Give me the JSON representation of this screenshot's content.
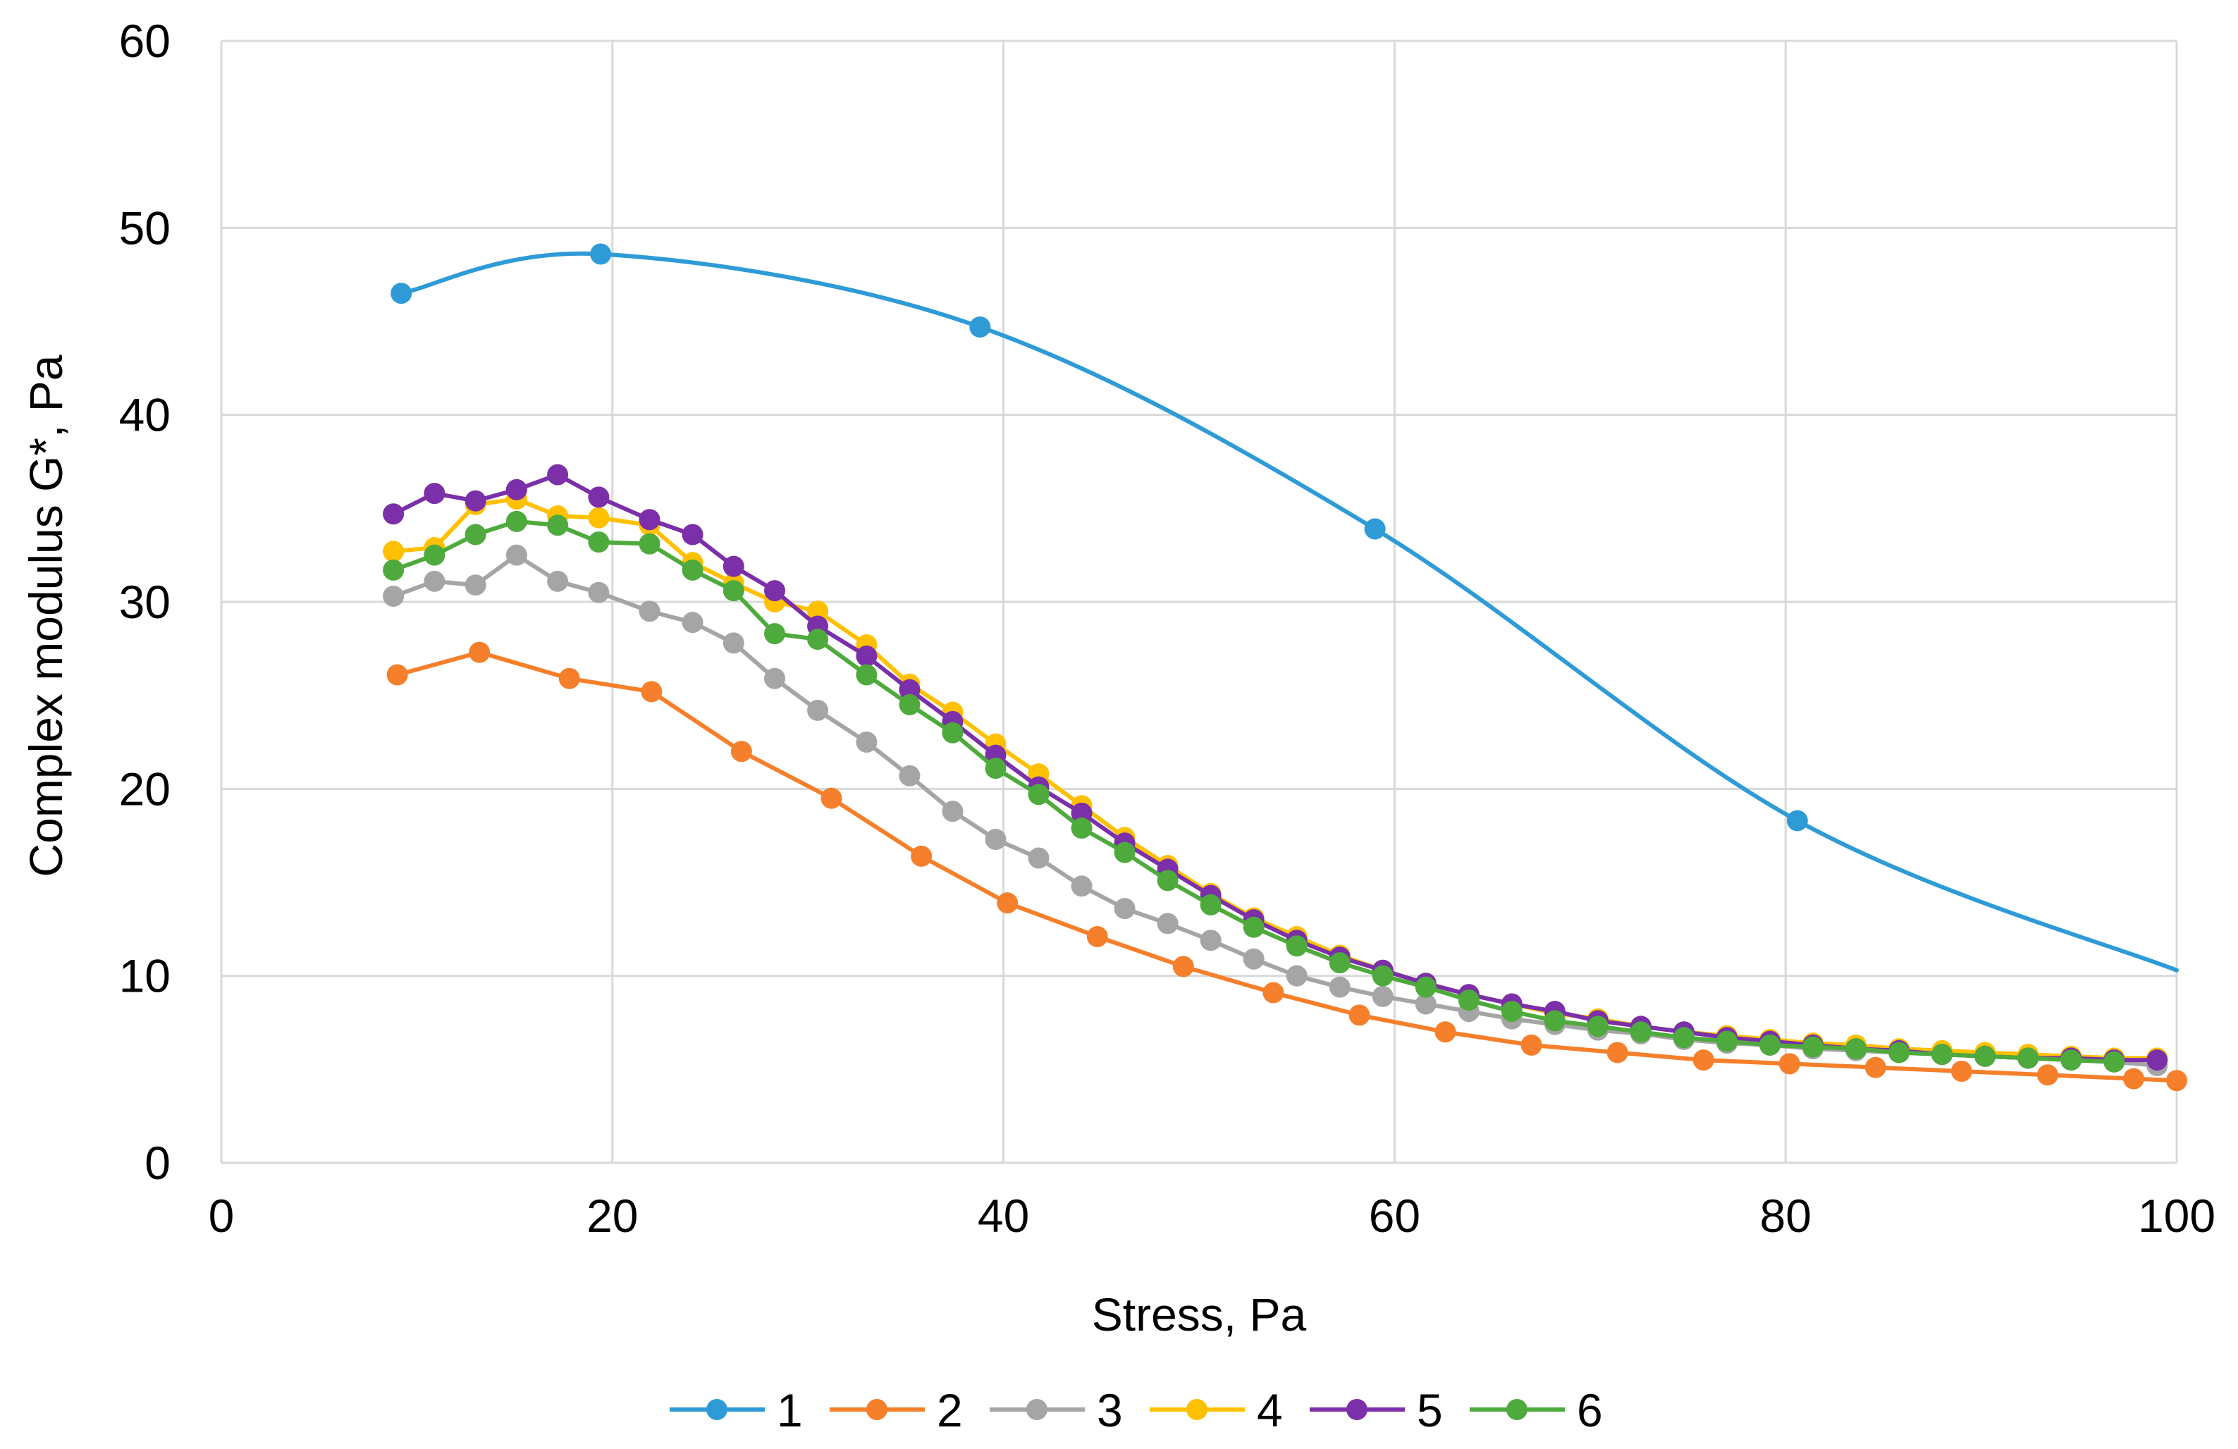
{
  "chart_data": {
    "type": "line",
    "xlabel": "Stress, Pa",
    "ylabel": "Complex modulus G*, Pa",
    "xlim": [
      0,
      100
    ],
    "ylim": [
      0,
      60
    ],
    "xticks": [
      0,
      20,
      40,
      60,
      80,
      100
    ],
    "yticks": [
      0,
      10,
      20,
      30,
      40,
      50,
      60
    ],
    "grid": true,
    "legend_position": "bottom",
    "series": [
      {
        "name": "1",
        "color": "#2E9BD6",
        "smooth": true,
        "x": [
          9.2,
          19.4,
          38.8,
          59.0,
          80.6,
          100.0
        ],
        "y": [
          46.5,
          48.6,
          44.7,
          33.9,
          18.3,
          10.3
        ],
        "markers": [
          true,
          true,
          true,
          true,
          true,
          false
        ]
      },
      {
        "name": "2",
        "color": "#F57F2A",
        "x": [
          9.0,
          13.2,
          17.8,
          22.0,
          26.6,
          31.2,
          35.8,
          40.2,
          44.8,
          49.2,
          53.8,
          58.2,
          62.6,
          67.0,
          71.4,
          75.8,
          80.2,
          84.6,
          89.0,
          93.4,
          97.8,
          100.0
        ],
        "y": [
          26.1,
          27.3,
          25.9,
          25.2,
          22.0,
          19.5,
          16.4,
          13.9,
          12.1,
          10.5,
          9.1,
          7.9,
          7.0,
          6.3,
          5.9,
          5.5,
          5.3,
          5.1,
          4.9,
          4.7,
          4.5,
          4.4
        ]
      },
      {
        "name": "3",
        "color": "#A5A5A5",
        "x": [
          8.8,
          10.9,
          13.0,
          15.1,
          17.2,
          19.3,
          21.9,
          24.1,
          26.2,
          28.3,
          30.5,
          33.0,
          35.2,
          37.4,
          39.6,
          41.8,
          44.0,
          46.2,
          48.4,
          50.6,
          52.8,
          55.0,
          57.2,
          59.4,
          61.6,
          63.8,
          66.0,
          68.2,
          70.4,
          72.6,
          74.8,
          77.0,
          79.2,
          81.4,
          83.6,
          85.8,
          88.0,
          90.2,
          92.4,
          94.6,
          96.8,
          99.0
        ],
        "y": [
          30.3,
          31.1,
          30.9,
          32.5,
          31.1,
          30.5,
          29.5,
          28.9,
          27.8,
          25.9,
          24.2,
          22.5,
          20.7,
          18.8,
          17.3,
          16.3,
          14.8,
          13.6,
          12.8,
          11.9,
          10.9,
          10.0,
          9.4,
          8.9,
          8.5,
          8.1,
          7.7,
          7.4,
          7.1,
          6.9,
          6.6,
          6.4,
          6.3,
          6.1,
          6.0,
          5.9,
          5.8,
          5.7,
          5.6,
          5.5,
          5.4,
          5.2
        ]
      },
      {
        "name": "4",
        "color": "#FFC000",
        "x": [
          8.8,
          10.9,
          13.0,
          15.1,
          17.2,
          19.3,
          21.9,
          24.1,
          26.2,
          28.3,
          30.5,
          33.0,
          35.2,
          37.4,
          39.6,
          41.8,
          44.0,
          46.2,
          48.4,
          50.6,
          52.8,
          55.0,
          57.2,
          59.4,
          61.6,
          63.8,
          66.0,
          68.2,
          70.4,
          72.6,
          74.8,
          77.0,
          79.2,
          81.4,
          83.6,
          85.8,
          88.0,
          90.2,
          92.4,
          94.6,
          96.8,
          99.0
        ],
        "y": [
          32.7,
          32.9,
          35.2,
          35.5,
          34.6,
          34.5,
          34.1,
          32.1,
          31.0,
          30.0,
          29.5,
          27.7,
          25.6,
          24.1,
          22.4,
          20.8,
          19.1,
          17.4,
          15.9,
          14.4,
          13.1,
          12.1,
          11.1,
          10.3,
          9.6,
          9.0,
          8.5,
          8.0,
          7.7,
          7.3,
          7.0,
          6.8,
          6.6,
          6.4,
          6.3,
          6.1,
          6.0,
          5.9,
          5.8,
          5.7,
          5.6,
          5.6
        ]
      },
      {
        "name": "5",
        "color": "#7B2FA8",
        "x": [
          8.8,
          10.9,
          13.0,
          15.1,
          17.2,
          19.3,
          21.9,
          24.1,
          26.2,
          28.3,
          30.5,
          33.0,
          35.2,
          37.4,
          39.6,
          41.8,
          44.0,
          46.2,
          48.4,
          50.6,
          52.8,
          55.0,
          57.2,
          59.4,
          61.6,
          63.8,
          66.0,
          68.2,
          70.4,
          72.6,
          74.8,
          77.0,
          79.2,
          81.4,
          83.6,
          85.8,
          88.0,
          90.2,
          92.4,
          94.6,
          96.8,
          99.0
        ],
        "y": [
          34.7,
          35.8,
          35.4,
          36.0,
          36.8,
          35.6,
          34.4,
          33.6,
          31.9,
          30.6,
          28.7,
          27.1,
          25.3,
          23.6,
          21.8,
          20.1,
          18.7,
          17.1,
          15.7,
          14.3,
          13.0,
          11.9,
          11.0,
          10.3,
          9.6,
          9.0,
          8.5,
          8.1,
          7.6,
          7.3,
          7.0,
          6.7,
          6.5,
          6.3,
          6.1,
          6.0,
          5.8,
          5.7,
          5.6,
          5.6,
          5.5,
          5.5
        ]
      },
      {
        "name": "6",
        "color": "#4EAA3C",
        "x": [
          8.8,
          10.9,
          13.0,
          15.1,
          17.2,
          19.3,
          21.9,
          24.1,
          26.2,
          28.3,
          30.5,
          33.0,
          35.2,
          37.4,
          39.6,
          41.8,
          44.0,
          46.2,
          48.4,
          50.6,
          52.8,
          55.0,
          57.2,
          59.4,
          61.6,
          63.8,
          66.0,
          68.2,
          70.4,
          72.6,
          74.8,
          77.0,
          79.2,
          81.4,
          83.6,
          85.8,
          88.0,
          90.2,
          92.4,
          94.6,
          96.8
        ],
        "y": [
          31.7,
          32.5,
          33.6,
          34.3,
          34.1,
          33.2,
          33.1,
          31.7,
          30.6,
          28.3,
          28.0,
          26.1,
          24.5,
          23.0,
          21.1,
          19.7,
          17.9,
          16.6,
          15.1,
          13.8,
          12.6,
          11.6,
          10.7,
          10.0,
          9.4,
          8.7,
          8.1,
          7.6,
          7.3,
          7.0,
          6.7,
          6.5,
          6.3,
          6.2,
          6.1,
          5.9,
          5.8,
          5.7,
          5.6,
          5.5,
          5.4
        ]
      }
    ]
  }
}
